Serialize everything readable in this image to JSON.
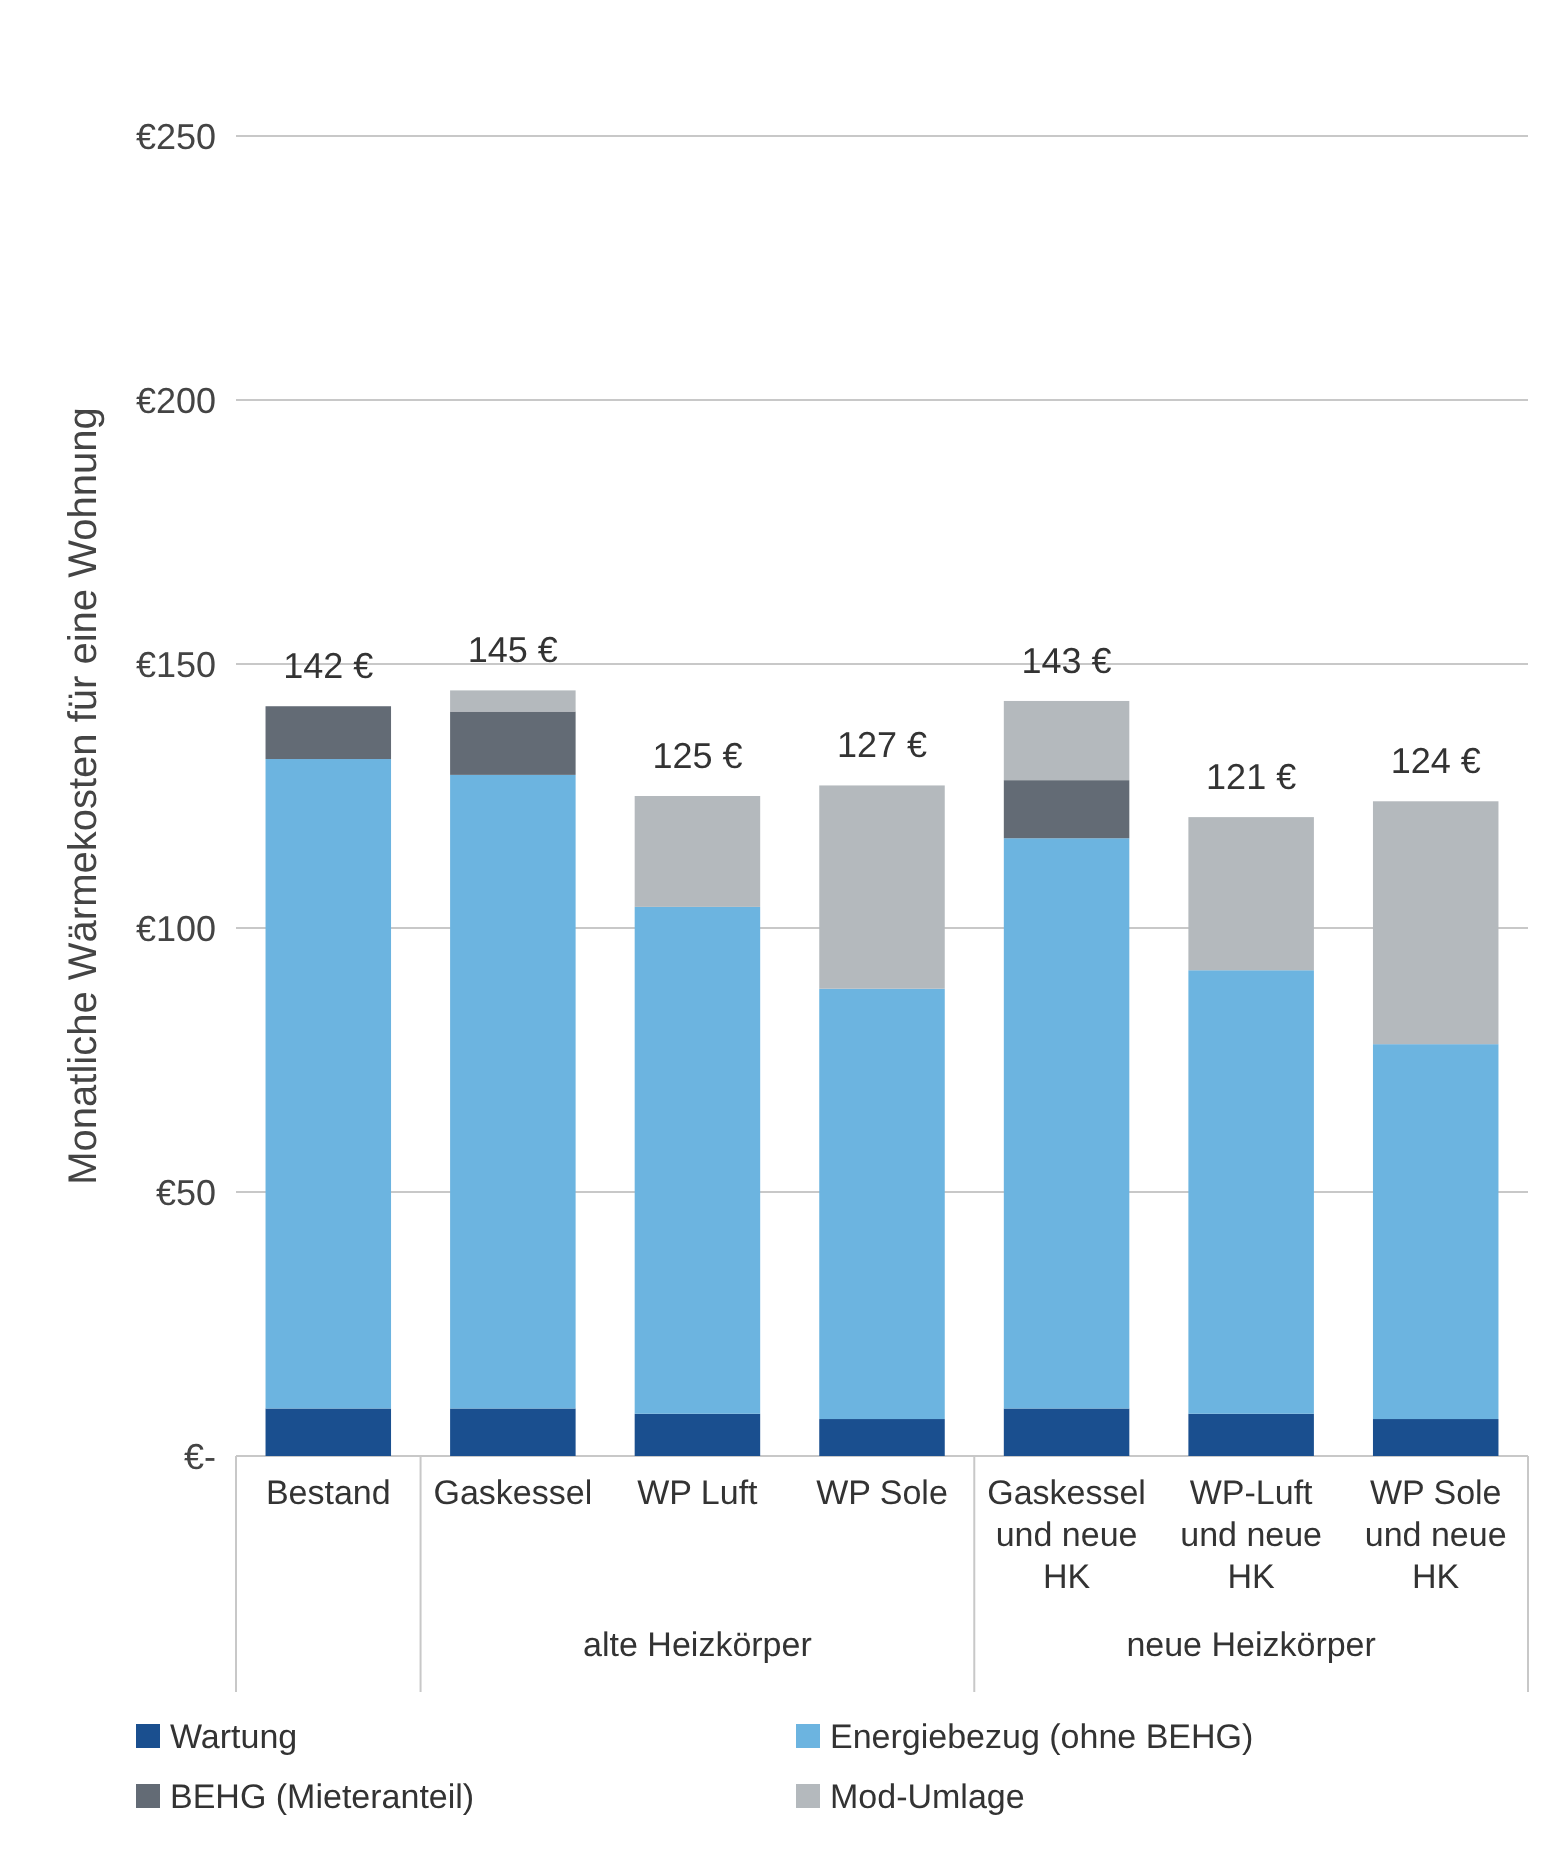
{
  "chart_data": {
    "type": "bar",
    "stacked": true,
    "ylabel": "Monatliche Wärmekosten für eine Wohnung",
    "categories": [
      "Bestand",
      "Gaskessel",
      "WP Luft",
      "WP Sole",
      "Gaskessel\nund neue\nHK",
      "WP-Luft\nund neue\nHK",
      "WP Sole\nund neue\nHK"
    ],
    "series": [
      {
        "name": "Wartung",
        "color": "#1a4f8f",
        "values": [
          9,
          9,
          8,
          7,
          9,
          8,
          7
        ]
      },
      {
        "name": "Energiebezug (ohne BEHG)",
        "color": "#6cb4e0",
        "values": [
          123,
          120,
          96,
          81.5,
          108,
          84,
          71
        ]
      },
      {
        "name": "BEHG (Mieteranteil)",
        "color": "#636b75",
        "values": [
          10,
          12,
          null,
          null,
          11,
          null,
          null
        ]
      },
      {
        "name": "Mod-Umlage",
        "color": "#b4b9bd",
        "values": [
          null,
          4,
          21,
          38.5,
          15,
          29,
          46
        ]
      }
    ],
    "totals": [
      "142 €",
      "145 €",
      "125 €",
      "127 €",
      "143 €",
      "121 €",
      "124 €"
    ],
    "annotations": [
      "alte Heizkörper",
      "neue Heizkörper"
    ],
    "ylim": [
      0,
      250
    ],
    "yticks": [
      {
        "value": 0,
        "label": "€-"
      },
      {
        "value": 50,
        "label": "€50"
      },
      {
        "value": 100,
        "label": "€100"
      },
      {
        "value": 150,
        "label": "€150"
      },
      {
        "value": 200,
        "label": "€200"
      },
      {
        "value": 250,
        "label": "€250"
      }
    ],
    "grid": "y",
    "legend": "bottom"
  }
}
